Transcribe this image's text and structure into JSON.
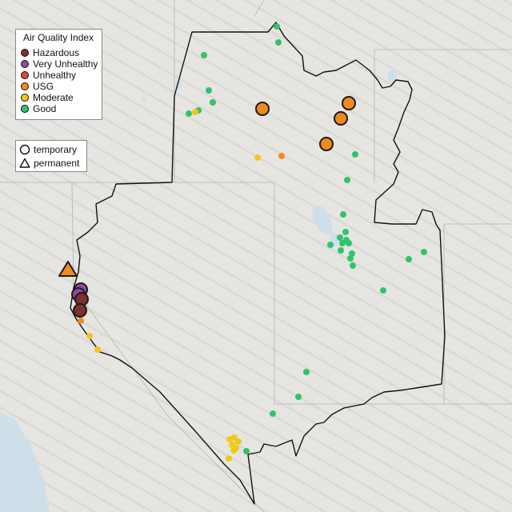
{
  "legend": {
    "title": "Air Quality Index",
    "categories": [
      {
        "label": "Hazardous",
        "color": "#7e2f2f"
      },
      {
        "label": "Very Unhealthy",
        "color": "#8e4aa0"
      },
      {
        "label": "Unhealthy",
        "color": "#e0443c"
      },
      {
        "label": "USG",
        "color": "#ee8a1e"
      },
      {
        "label": "Moderate",
        "color": "#f2c818"
      },
      {
        "label": "Good",
        "color": "#2fc46c"
      }
    ]
  },
  "monitor_legend": {
    "items": [
      {
        "label": "temporary",
        "shape": "circle-outline-icon"
      },
      {
        "label": "permanent",
        "shape": "triangle-outline-icon"
      }
    ]
  },
  "map": {
    "land_color": "#e6e4e1",
    "water_color": "#cfdfea",
    "boundary_color": "#111111",
    "state_line_color": "#b8b8b8",
    "marker_stroke": "#1a1a1a"
  }
}
